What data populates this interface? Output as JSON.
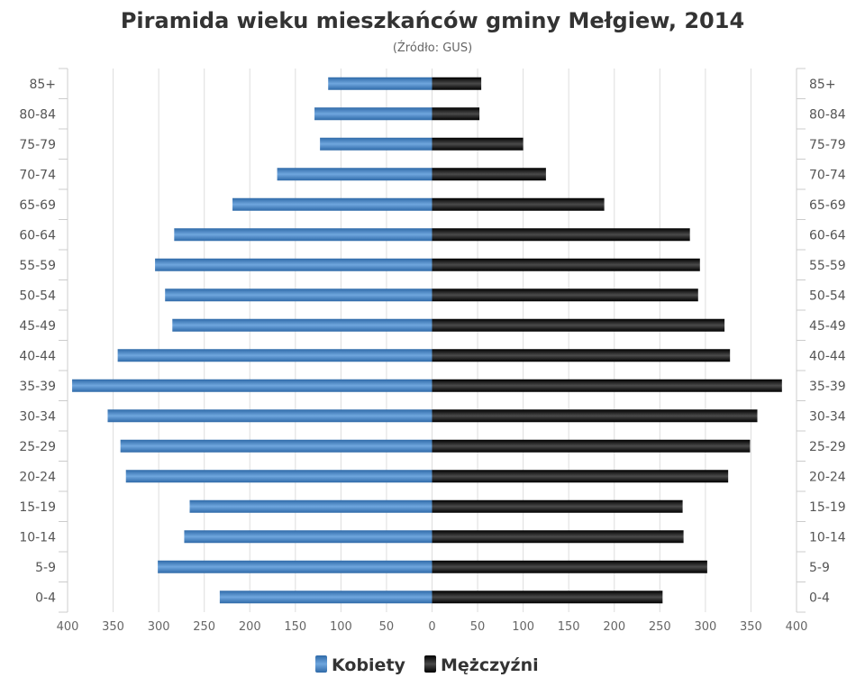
{
  "chart_data": {
    "type": "bar",
    "orientation": "horizontal-population-pyramid",
    "title": "Piramida wieku mieszkańców gminy Mełgiew, 2014",
    "subtitle": "(Źródło: GUS)",
    "categories": [
      "85+",
      "80-84",
      "75-79",
      "70-74",
      "65-69",
      "60-64",
      "55-59",
      "50-54",
      "45-49",
      "40-44",
      "35-39",
      "30-34",
      "25-29",
      "20-24",
      "15-19",
      "10-14",
      "5-9",
      "0-4"
    ],
    "series": [
      {
        "name": "Kobiety",
        "color": "#3f7fc1",
        "side": "left",
        "values": [
          114,
          129,
          123,
          170,
          219,
          283,
          304,
          293,
          285,
          345,
          395,
          356,
          342,
          336,
          266,
          272,
          301,
          233
        ]
      },
      {
        "name": "Mężczyźni",
        "color": "#111111",
        "side": "right",
        "values": [
          54,
          52,
          100,
          125,
          189,
          283,
          294,
          292,
          321,
          327,
          384,
          357,
          349,
          325,
          275,
          276,
          302,
          253
        ]
      }
    ],
    "xticks": [
      "400",
      "350",
      "300",
      "250",
      "200",
      "150",
      "100",
      "50",
      "0",
      "50",
      "100",
      "150",
      "200",
      "250",
      "300",
      "350",
      "400"
    ],
    "xlim": [
      -400,
      400
    ],
    "grid": true,
    "legend": "bottom-center"
  }
}
